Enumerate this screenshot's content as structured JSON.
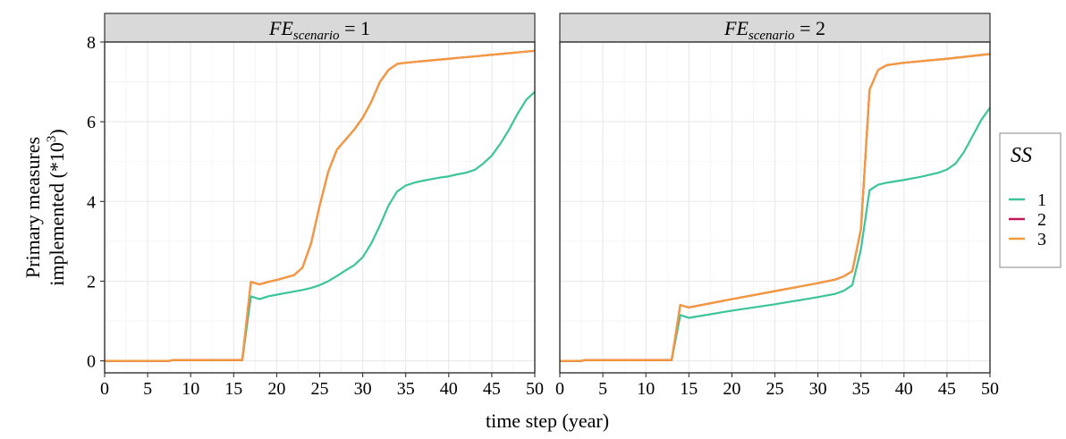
{
  "chart_data": {
    "type": "line",
    "xlabel": "time step (year)",
    "ylabel_line1": "Primary measures",
    "ylabel_line2": "implemented (*10",
    "ylabel_sup": "3",
    "ylabel_close": ")",
    "xlim": [
      0,
      50
    ],
    "ylim": [
      -0.3,
      8.0
    ],
    "xticks": [
      0,
      5,
      10,
      15,
      20,
      25,
      30,
      35,
      40,
      45,
      50
    ],
    "yticks": [
      0,
      2,
      4,
      6,
      8
    ],
    "grid": true,
    "legend": {
      "title": "SS",
      "placement": "right",
      "entries": [
        {
          "label": "1",
          "color": "#3cc49a"
        },
        {
          "label": "2",
          "color": "#c2185b"
        },
        {
          "label": "3",
          "color": "#f59a3a"
        }
      ]
    },
    "panels": [
      {
        "strip_var": "FE",
        "strip_sub": "scenario",
        "strip_value": " = 1",
        "series": [
          {
            "name": "1",
            "color": "#3cc49a",
            "x": [
              0,
              7.5,
              8,
              16,
              17,
              18,
              19,
              20,
              21,
              22,
              23,
              24,
              25,
              26,
              27,
              28,
              29,
              30,
              31,
              32,
              33,
              34,
              35,
              36,
              37,
              38,
              39,
              40,
              41,
              42,
              43,
              44,
              45,
              46,
              47,
              48,
              49,
              50
            ],
            "y": [
              0,
              0,
              0.02,
              0.02,
              1.62,
              1.55,
              1.62,
              1.66,
              1.7,
              1.74,
              1.78,
              1.83,
              1.9,
              2.0,
              2.13,
              2.27,
              2.4,
              2.6,
              2.95,
              3.4,
              3.9,
              4.25,
              4.4,
              4.47,
              4.52,
              4.56,
              4.6,
              4.63,
              4.68,
              4.72,
              4.79,
              4.95,
              5.15,
              5.45,
              5.8,
              6.2,
              6.55,
              6.75
            ]
          },
          {
            "name": "2",
            "color": "#c2185b",
            "x": [
              0,
              7.5,
              8,
              16,
              17,
              18,
              19,
              20,
              21,
              22,
              23,
              24,
              25,
              26,
              27,
              28,
              29,
              30,
              31,
              32,
              33,
              34,
              35,
              36,
              37,
              38,
              39,
              40,
              41,
              42,
              43,
              44,
              45,
              46,
              47,
              48,
              49,
              50
            ],
            "y": [
              0,
              0,
              0.02,
              0.02,
              1.98,
              1.92,
              1.98,
              2.03,
              2.09,
              2.15,
              2.34,
              2.95,
              3.9,
              4.75,
              5.3,
              5.55,
              5.8,
              6.1,
              6.5,
              7.0,
              7.3,
              7.45,
              7.48,
              7.5,
              7.52,
              7.54,
              7.56,
              7.58,
              7.6,
              7.62,
              7.64,
              7.66,
              7.68,
              7.7,
              7.72,
              7.74,
              7.76,
              7.78
            ]
          },
          {
            "name": "3",
            "color": "#f59a3a",
            "x": [
              0,
              7.5,
              8,
              16,
              17,
              18,
              19,
              20,
              21,
              22,
              23,
              24,
              25,
              26,
              27,
              28,
              29,
              30,
              31,
              32,
              33,
              34,
              35,
              36,
              37,
              38,
              39,
              40,
              41,
              42,
              43,
              44,
              45,
              46,
              47,
              48,
              49,
              50
            ],
            "y": [
              0,
              0,
              0.02,
              0.02,
              1.98,
              1.92,
              1.98,
              2.03,
              2.09,
              2.15,
              2.34,
              2.95,
              3.9,
              4.75,
              5.3,
              5.55,
              5.8,
              6.1,
              6.5,
              7.0,
              7.3,
              7.45,
              7.48,
              7.5,
              7.52,
              7.54,
              7.56,
              7.58,
              7.6,
              7.62,
              7.64,
              7.66,
              7.68,
              7.7,
              7.72,
              7.74,
              7.76,
              7.78
            ]
          }
        ]
      },
      {
        "strip_var": "FE",
        "strip_sub": "scenario",
        "strip_value": " = 2",
        "series": [
          {
            "name": "1",
            "color": "#3cc49a",
            "x": [
              0,
              2.5,
              3,
              13,
              14,
              15,
              20,
              25,
              30,
              32,
              33,
              34,
              35,
              36,
              37,
              38,
              40,
              42,
              44,
              45,
              46,
              47,
              48,
              49,
              50
            ],
            "y": [
              0,
              0,
              0.02,
              0.02,
              1.15,
              1.08,
              1.26,
              1.42,
              1.6,
              1.68,
              1.76,
              1.9,
              2.8,
              4.28,
              4.42,
              4.47,
              4.54,
              4.62,
              4.72,
              4.8,
              4.95,
              5.25,
              5.65,
              6.05,
              6.35
            ]
          },
          {
            "name": "2",
            "color": "#c2185b",
            "x": [
              0,
              2.5,
              3,
              13,
              14,
              15,
              20,
              25,
              30,
              32,
              33,
              34,
              35,
              36,
              37,
              38,
              40,
              45,
              50
            ],
            "y": [
              0,
              0,
              0.02,
              0.02,
              1.4,
              1.34,
              1.55,
              1.75,
              1.95,
              2.04,
              2.12,
              2.25,
              3.3,
              6.8,
              7.3,
              7.42,
              7.48,
              7.58,
              7.7
            ]
          },
          {
            "name": "3",
            "color": "#f59a3a",
            "x": [
              0,
              2.5,
              3,
              13,
              14,
              15,
              20,
              25,
              30,
              32,
              33,
              34,
              35,
              36,
              37,
              38,
              40,
              45,
              50
            ],
            "y": [
              0,
              0,
              0.02,
              0.02,
              1.4,
              1.34,
              1.55,
              1.75,
              1.95,
              2.04,
              2.12,
              2.25,
              3.3,
              6.8,
              7.3,
              7.42,
              7.48,
              7.58,
              7.7
            ]
          }
        ]
      }
    ]
  }
}
